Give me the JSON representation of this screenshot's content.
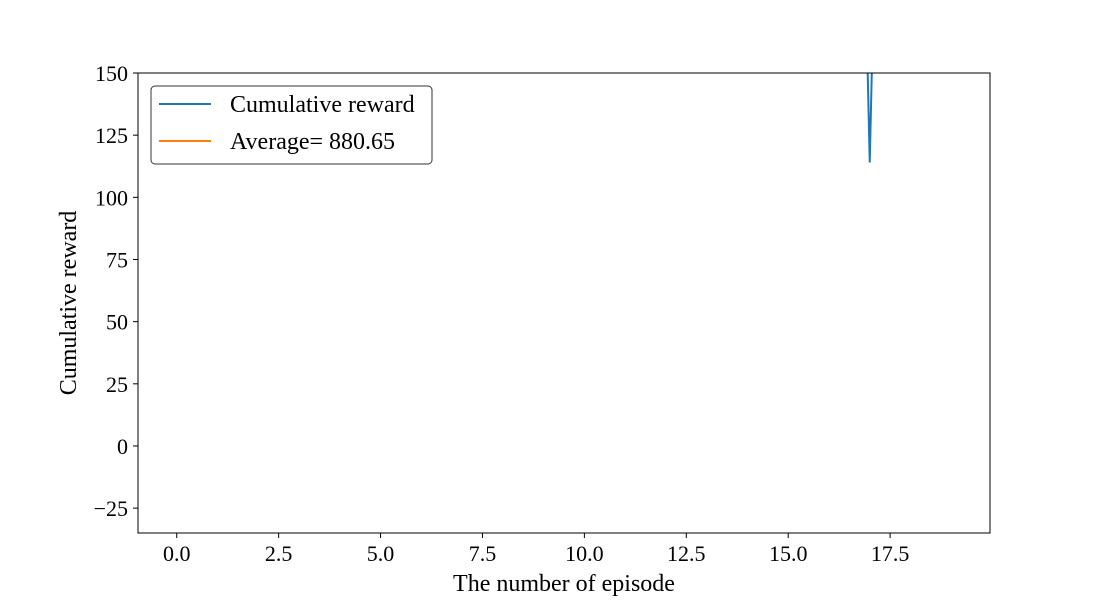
{
  "chart_data": {
    "type": "line",
    "title": "",
    "xlabel": "The number of episode",
    "ylabel": "Cumulative reward",
    "xlim": [
      -0.95,
      19.95
    ],
    "ylim": [
      -35,
      150
    ],
    "xticks": [
      "0.0",
      "2.5",
      "5.0",
      "7.5",
      "10.0",
      "12.5",
      "15.0",
      "17.5"
    ],
    "yticks": [
      "−25",
      "0",
      "25",
      "50",
      "75",
      "100",
      "125",
      "150"
    ],
    "grid": false,
    "legend_position": "upper left",
    "series": [
      {
        "name": "Cumulative reward",
        "color": "#1f77b4",
        "x": [
          16.95,
          17,
          17.05
        ],
        "y": [
          150,
          114,
          150
        ]
      },
      {
        "name": "Average= 880.65",
        "color": "#ff7f0e",
        "x": [],
        "y": []
      }
    ]
  }
}
